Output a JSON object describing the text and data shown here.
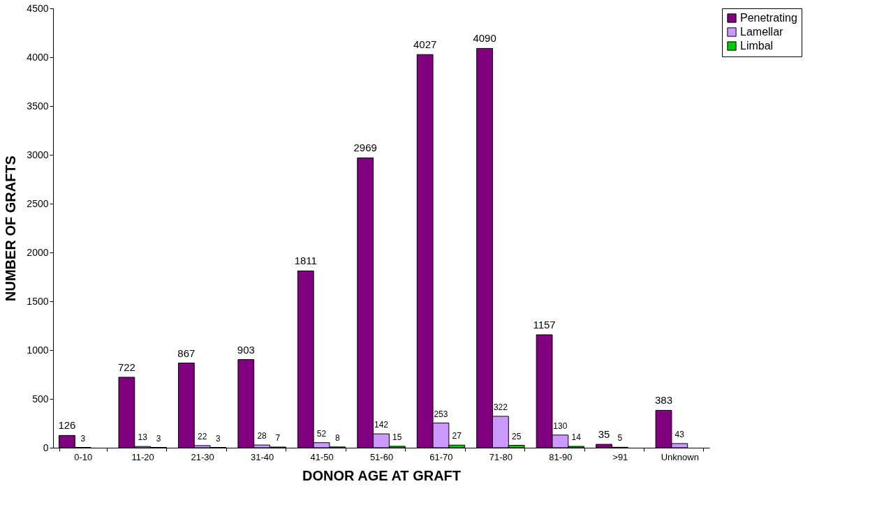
{
  "chart_data": {
    "type": "bar",
    "xlabel": "DONOR AGE AT GRAFT",
    "ylabel": "NUMBER OF GRAFTS",
    "categories": [
      "0-10",
      "11-20",
      "21-30",
      "31-40",
      "41-50",
      "51-60",
      "61-70",
      "71-80",
      "81-90",
      ">91",
      "Unknown"
    ],
    "series": [
      {
        "name": "Penetrating",
        "color": "#800080",
        "values": [
          126,
          722,
          867,
          903,
          1811,
          2969,
          4027,
          4090,
          1157,
          35,
          383
        ]
      },
      {
        "name": "Lamellar",
        "color": "#cc99ff",
        "values": [
          3,
          13,
          22,
          28,
          52,
          142,
          253,
          322,
          130,
          5,
          43
        ]
      },
      {
        "name": "Limbal",
        "color": "#00cc00",
        "values": [
          null,
          3,
          3,
          7,
          8,
          15,
          27,
          25,
          14,
          null,
          null
        ]
      }
    ],
    "ylim": [
      0,
      4500
    ],
    "yticks": [
      0,
      500,
      1000,
      1500,
      2000,
      2500,
      3000,
      3500,
      4000,
      4500
    ],
    "data_labels": true,
    "grid": false,
    "legend": "right"
  }
}
